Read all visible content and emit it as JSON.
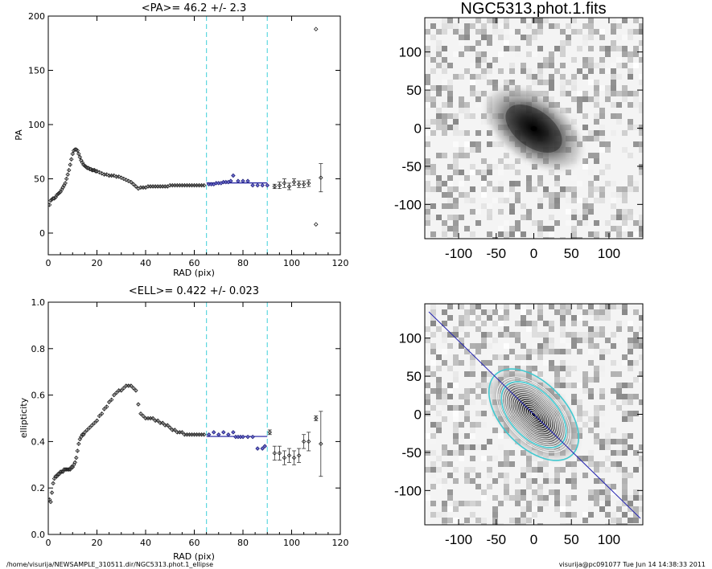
{
  "chart_data": [
    {
      "type": "scatter",
      "title": "<PA>=  46.2 +/-   2.3",
      "xlabel": "RAD (pix)",
      "ylabel": "PA",
      "xlim": [
        0,
        120
      ],
      "ylim": [
        -20,
        200
      ],
      "xticks": [
        "0",
        "20",
        "40",
        "60",
        "80",
        "100",
        "120"
      ],
      "yticks": [
        "0",
        "50",
        "100",
        "150",
        "200"
      ],
      "fit_range": [
        65,
        90
      ],
      "fit_value": 46.2,
      "vlines": [
        65,
        90
      ],
      "curve_x": [
        0.5,
        1,
        1.5,
        2,
        2.5,
        3,
        3.5,
        4,
        4.5,
        5,
        5.5,
        6,
        6.5,
        7,
        7.5,
        8,
        8.5,
        9,
        9.5,
        10,
        10.5,
        11,
        11.5,
        12,
        12.5,
        13,
        13.5,
        14,
        14.5,
        15,
        15.5,
        16,
        16.5,
        17,
        17.5,
        18,
        18.5,
        19,
        19.5,
        20,
        21,
        22,
        23,
        24,
        25,
        26,
        27,
        28,
        29,
        30,
        31,
        32,
        33,
        34,
        35,
        36,
        37,
        38,
        39,
        40,
        41,
        42,
        43,
        44,
        45,
        46,
        47,
        48,
        49,
        50,
        51,
        52,
        53,
        54,
        55,
        56,
        57,
        58,
        59,
        60,
        61,
        62,
        63,
        64
      ],
      "curve_y": [
        26,
        30,
        31,
        32,
        32,
        33,
        35,
        36,
        37,
        38,
        40,
        42,
        44,
        46,
        50,
        54,
        58,
        63,
        68,
        73,
        76,
        77,
        77,
        76,
        73,
        70,
        67,
        65,
        63,
        62,
        61,
        60,
        60,
        59,
        59,
        58,
        58,
        58,
        57,
        57,
        56,
        55,
        54,
        54,
        53,
        53,
        53,
        52,
        52,
        51,
        50,
        49,
        48,
        47,
        45,
        43,
        41,
        42,
        42,
        42,
        43,
        43,
        43,
        43,
        43,
        43,
        43,
        43,
        43,
        44,
        44,
        44,
        44,
        44,
        44,
        44,
        44,
        44,
        44,
        44,
        44,
        44,
        44,
        44
      ],
      "fit_points": [
        {
          "x": 66,
          "y": 45
        },
        {
          "x": 67,
          "y": 45
        },
        {
          "x": 68,
          "y": 45
        },
        {
          "x": 69,
          "y": 46
        },
        {
          "x": 70,
          "y": 46
        },
        {
          "x": 71,
          "y": 46
        },
        {
          "x": 72,
          "y": 47
        },
        {
          "x": 73,
          "y": 47
        },
        {
          "x": 74,
          "y": 47
        },
        {
          "x": 75,
          "y": 48
        },
        {
          "x": 76,
          "y": 53
        },
        {
          "x": 78,
          "y": 48
        },
        {
          "x": 80,
          "y": 48
        },
        {
          "x": 82,
          "y": 48
        },
        {
          "x": 84,
          "y": 44
        },
        {
          "x": 86,
          "y": 44
        },
        {
          "x": 88,
          "y": 44
        },
        {
          "x": 90,
          "y": 44
        }
      ],
      "err_points": [
        {
          "x": 93,
          "y": 43,
          "e": 2
        },
        {
          "x": 95,
          "y": 44,
          "e": 3
        },
        {
          "x": 97,
          "y": 46,
          "e": 4
        },
        {
          "x": 99,
          "y": 43,
          "e": 3
        },
        {
          "x": 101,
          "y": 47,
          "e": 3
        },
        {
          "x": 103,
          "y": 45,
          "e": 3
        },
        {
          "x": 105,
          "y": 45,
          "e": 3
        },
        {
          "x": 107,
          "y": 46,
          "e": 3
        },
        {
          "x": 110,
          "y": 8,
          "e": 0
        },
        {
          "x": 110,
          "y": 188,
          "e": 0
        },
        {
          "x": 112,
          "y": 51,
          "e": 13
        }
      ]
    },
    {
      "type": "scatter",
      "title": "<ELL>= 0.422 +/-  0.023",
      "xlabel": "RAD (pix)",
      "ylabel": "ellipticity",
      "xlim": [
        0,
        120
      ],
      "ylim": [
        0,
        1
      ],
      "xticks": [
        "0",
        "20",
        "40",
        "60",
        "80",
        "100",
        "120"
      ],
      "yticks": [
        "0.0",
        "0.2",
        "0.4",
        "0.6",
        "0.8",
        "1.0"
      ],
      "fit_range": [
        65,
        90
      ],
      "fit_value": 0.422,
      "vlines": [
        65,
        90
      ],
      "curve_x": [
        0.5,
        1,
        1.5,
        2,
        2.5,
        3,
        3.5,
        4,
        4.5,
        5,
        5.5,
        6,
        6.5,
        7,
        7.5,
        8,
        8.5,
        9,
        9.5,
        10,
        10.5,
        11,
        11.5,
        12,
        12.5,
        13,
        13.5,
        14,
        14.5,
        15,
        16,
        17,
        18,
        19,
        20,
        21,
        22,
        23,
        24,
        25,
        26,
        27,
        28,
        29,
        30,
        31,
        32,
        33,
        34,
        35,
        36,
        37,
        38,
        39,
        40,
        41,
        42,
        43,
        44,
        45,
        46,
        47,
        48,
        49,
        50,
        51,
        52,
        53,
        54,
        55,
        56,
        57,
        58,
        59,
        60,
        61,
        62,
        63,
        64
      ],
      "curve_y": [
        0.15,
        0.14,
        0.18,
        0.22,
        0.24,
        0.25,
        0.25,
        0.26,
        0.26,
        0.27,
        0.27,
        0.27,
        0.28,
        0.28,
        0.28,
        0.28,
        0.28,
        0.28,
        0.29,
        0.29,
        0.3,
        0.31,
        0.33,
        0.36,
        0.39,
        0.41,
        0.42,
        0.43,
        0.43,
        0.44,
        0.45,
        0.46,
        0.47,
        0.48,
        0.49,
        0.51,
        0.52,
        0.54,
        0.55,
        0.57,
        0.58,
        0.6,
        0.61,
        0.62,
        0.62,
        0.63,
        0.64,
        0.64,
        0.64,
        0.63,
        0.62,
        0.56,
        0.52,
        0.51,
        0.5,
        0.5,
        0.5,
        0.5,
        0.49,
        0.49,
        0.48,
        0.48,
        0.47,
        0.47,
        0.46,
        0.45,
        0.45,
        0.44,
        0.44,
        0.44,
        0.43,
        0.43,
        0.43,
        0.43,
        0.43,
        0.43,
        0.43,
        0.43,
        0.43
      ],
      "fit_points": [
        {
          "x": 66,
          "y": 0.43
        },
        {
          "x": 68,
          "y": 0.44
        },
        {
          "x": 70,
          "y": 0.43
        },
        {
          "x": 72,
          "y": 0.44
        },
        {
          "x": 74,
          "y": 0.43
        },
        {
          "x": 76,
          "y": 0.44
        },
        {
          "x": 77,
          "y": 0.42
        },
        {
          "x": 78,
          "y": 0.42
        },
        {
          "x": 79,
          "y": 0.42
        },
        {
          "x": 80,
          "y": 0.42
        },
        {
          "x": 82,
          "y": 0.42
        },
        {
          "x": 84,
          "y": 0.42
        },
        {
          "x": 86,
          "y": 0.37
        },
        {
          "x": 88,
          "y": 0.37
        },
        {
          "x": 89,
          "y": 0.38
        }
      ],
      "err_points": [
        {
          "x": 91,
          "y": 0.44,
          "e": 0.01
        },
        {
          "x": 93,
          "y": 0.35,
          "e": 0.03
        },
        {
          "x": 95,
          "y": 0.35,
          "e": 0.03
        },
        {
          "x": 97,
          "y": 0.33,
          "e": 0.03
        },
        {
          "x": 99,
          "y": 0.34,
          "e": 0.03
        },
        {
          "x": 101,
          "y": 0.33,
          "e": 0.03
        },
        {
          "x": 103,
          "y": 0.34,
          "e": 0.03
        },
        {
          "x": 105,
          "y": 0.4,
          "e": 0.03
        },
        {
          "x": 107,
          "y": 0.4,
          "e": 0.04
        },
        {
          "x": 110,
          "y": 0.5,
          "e": 0.01
        },
        {
          "x": 112,
          "y": 0.39,
          "e": 0.14
        }
      ]
    },
    {
      "type": "heatmap",
      "title": "NGC5313.phot.1.fits",
      "xlim": [
        -145,
        145
      ],
      "ylim": [
        -145,
        145
      ],
      "xticks": [
        "-100",
        "-50",
        "0",
        "50",
        "100"
      ],
      "yticks": [
        "100",
        "50",
        "0",
        "-50",
        "-100"
      ],
      "galaxy_pa_deg": 46.2,
      "galaxy_ellipticity": 0.422
    },
    {
      "type": "heatmap",
      "title": "",
      "xlim": [
        -145,
        145
      ],
      "ylim": [
        -145,
        145
      ],
      "xticks": [
        "-100",
        "-50",
        "0",
        "50",
        "100"
      ],
      "yticks": [
        "100",
        "50",
        "0",
        "-50",
        "-100"
      ],
      "overlay": "fitted isophote ellipses and position-angle line",
      "galaxy_pa_deg": 46.2,
      "galaxy_ellipticity": 0.422,
      "highlighted_radii": [
        65,
        90
      ]
    }
  ],
  "footer": {
    "path": "/home/visurija/NEWSAMPLE_310511.dir/NGC5313.phot.1_ellipse",
    "stamp": "visurija@pc091077  Tue Jun 14 14:38:33 2011"
  },
  "colors": {
    "vline": "#5fd7e0",
    "fit": "#1a1aa0",
    "isophote": "#ffffff",
    "highlight_isophote": "#43c9d0"
  }
}
